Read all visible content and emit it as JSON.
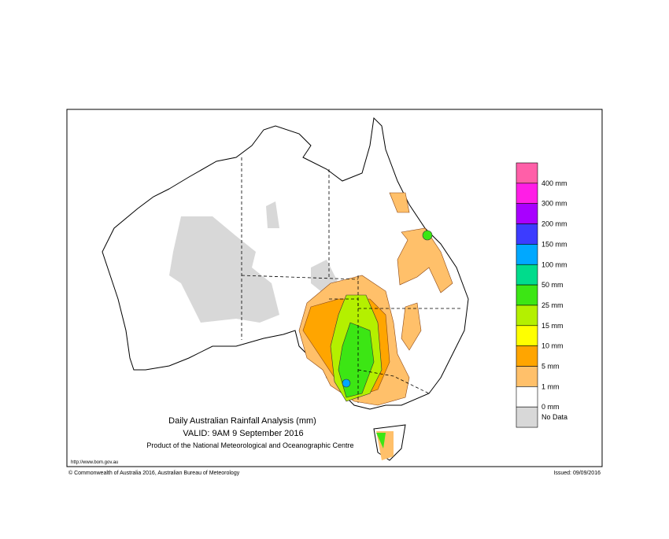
{
  "header": {
    "title": "Daily Australian Rainfall Analysis (mm)",
    "valid": "VALID: 9AM  9 September 2016",
    "product": "Product of the National Meteorological and Oceanographic Centre"
  },
  "legend": {
    "colors": [
      "#ff5fa8",
      "#ff1ee6",
      "#a800ff",
      "#3c3cff",
      "#00a8ff",
      "#00dc8c",
      "#3ce614",
      "#b4f000",
      "#ffff00",
      "#ffa500",
      "#ffc06a",
      "#ffffff",
      "#d8d8d8"
    ],
    "labels": [
      "400 mm",
      "300 mm",
      "200 mm",
      "150 mm",
      "100 mm",
      "50 mm",
      "25 mm",
      "15 mm",
      "10 mm",
      "5 mm",
      "1 mm",
      "0 mm",
      "No Data"
    ]
  },
  "footer": {
    "url": "http://www.bom.gov.au",
    "copyright": "© Commonwealth of Australia 2016, Australian Bureau of Meteorology",
    "issued": "Issued: 09/09/2016"
  }
}
